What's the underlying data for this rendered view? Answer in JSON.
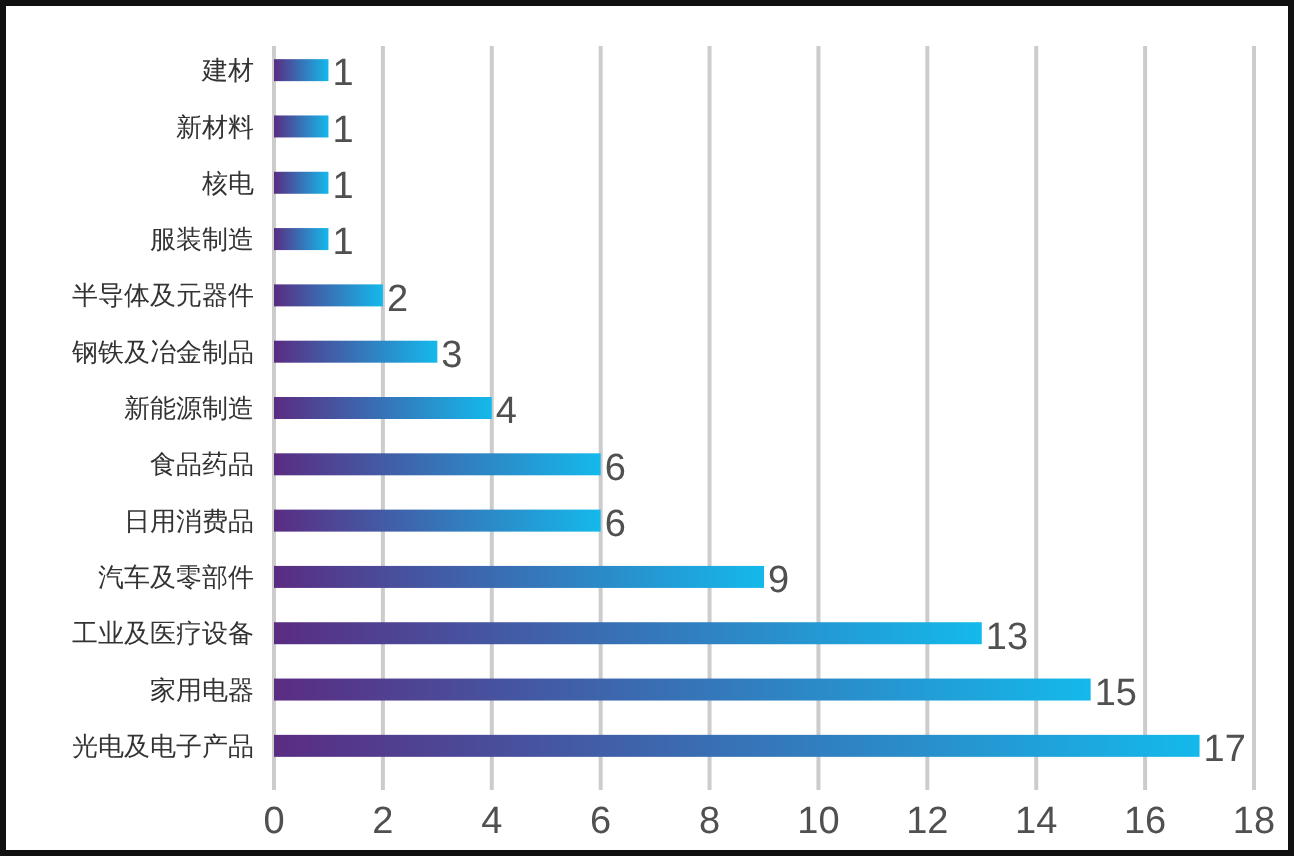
{
  "chart_data": {
    "type": "bar",
    "orientation": "horizontal",
    "categories": [
      "建材",
      "新材料",
      "核电",
      "服装制造",
      "半导体及元器件",
      "钢铁及冶金制品",
      "新能源制造",
      "食品药品",
      "日用消费品",
      "汽车及零部件",
      "工业及医疗设备",
      "家用电器",
      "光电及电子产品"
    ],
    "values": [
      1,
      1,
      1,
      1,
      2,
      3,
      4,
      6,
      6,
      9,
      13,
      15,
      17
    ],
    "color": "#14b9eb",
    "xlim": [
      0,
      18
    ],
    "xticks": [
      0,
      2,
      4,
      6,
      8,
      10,
      12,
      14,
      16,
      18
    ],
    "grid": "x",
    "data_labels": true
  }
}
